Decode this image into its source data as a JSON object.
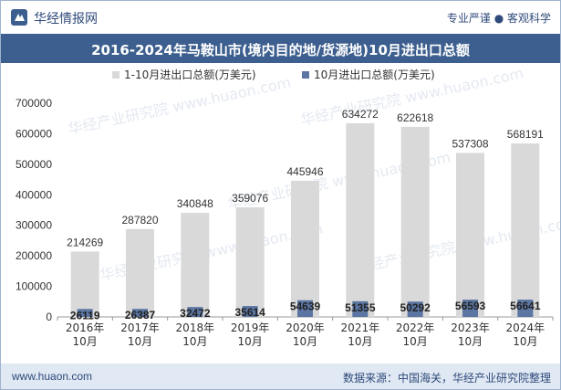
{
  "header": {
    "brand": "华经情报网",
    "tagline": "专业严谨 ● 客观科学",
    "logo_icon": "huajing-logo-icon"
  },
  "title": "2016-2024年马鞍山市(境内目的地/货源地)10月进出口总额",
  "footer": {
    "site": "www.huaon.com",
    "source": "数据来源：中国海关，华经产业研究院整理"
  },
  "colors": {
    "series1": "#d9d9d9",
    "series2": "#5b76a3",
    "title_bg": "#3d5f8f",
    "footer_bg": "#dfe8f3"
  },
  "chart_data": {
    "type": "bar",
    "categories": [
      "2016年\n10月",
      "2017年\n10月",
      "2018年\n10月",
      "2019年\n10月",
      "2020年\n10月",
      "2021年\n10月",
      "2022年\n10月",
      "2023年\n10月",
      "2024年\n10月"
    ],
    "series": [
      {
        "name": "1-10月进出口总额(万美元)",
        "values": [
          214269,
          287820,
          340848,
          359076,
          445946,
          634272,
          622618,
          537308,
          568191
        ]
      },
      {
        "name": "10月进出口总额(万美元)",
        "values": [
          26119,
          26387,
          32472,
          35614,
          54639,
          51355,
          50292,
          56593,
          56641
        ]
      }
    ],
    "yticks": [
      "0",
      "100000",
      "200000",
      "300000",
      "400000",
      "500000",
      "600000",
      "700000"
    ],
    "ylim": [
      0,
      700000
    ],
    "legend_position": "top-center",
    "grid": false,
    "watermark": "华经产业研究院 www.huaon.com"
  }
}
